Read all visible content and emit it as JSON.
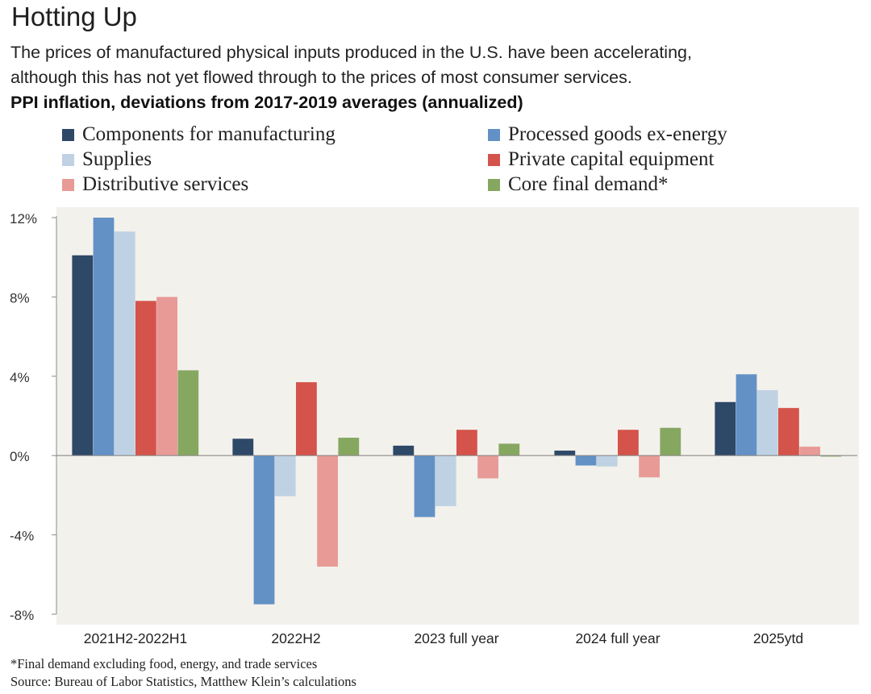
{
  "title": "Hotting Up",
  "subtitle": [
    "The prices of manufactured physical inputs produced in the U.S. have been accelerating,",
    "although this has not yet flowed through to the prices of most consumer services."
  ],
  "chart_heading": "PPI inflation, deviations from 2017-2019 averages (annualized)",
  "footnote": "*Final demand excluding food, energy, and trade services",
  "source": "Source: Bureau of Labor Statistics, Matthew Klein’s calculations",
  "chart_data": {
    "type": "bar",
    "title": "PPI inflation, deviations from 2017-2019 averages (annualized)",
    "xlabel": "",
    "ylabel": "",
    "ylim": [
      -8,
      12
    ],
    "yticks": [
      -8,
      -4,
      0,
      4,
      8,
      12
    ],
    "ytick_labels": [
      "-8%",
      "-4%",
      "0%",
      "4%",
      "8%",
      "12%"
    ],
    "grid": false,
    "legend_position": "top",
    "background": "#f3f1ec",
    "categories": [
      "2021H2-2022H1",
      "2022H2",
      "2023 full year",
      "2024 full year",
      "2025ytd"
    ],
    "series": [
      {
        "name": "Components for manufacturing",
        "color": "#2e4868",
        "values": [
          10.1,
          0.85,
          0.5,
          0.25,
          2.7
        ]
      },
      {
        "name": "Processed goods ex-energy",
        "color": "#6391c6",
        "values": [
          12.0,
          -7.5,
          -3.1,
          -0.5,
          4.1
        ]
      },
      {
        "name": "Supplies",
        "color": "#bfd2e3",
        "values": [
          11.3,
          -2.05,
          -2.55,
          -0.55,
          3.3
        ]
      },
      {
        "name": "Private capital equipment",
        "color": "#d4534a",
        "values": [
          7.8,
          3.7,
          1.3,
          1.3,
          2.4
        ]
      },
      {
        "name": "Distributive services",
        "color": "#e89a97",
        "values": [
          8.0,
          -5.6,
          -1.15,
          -1.1,
          0.45
        ]
      },
      {
        "name": "Core final demand*",
        "color": "#86a760",
        "values": [
          4.3,
          0.9,
          0.6,
          1.4,
          -0.05
        ]
      }
    ]
  }
}
